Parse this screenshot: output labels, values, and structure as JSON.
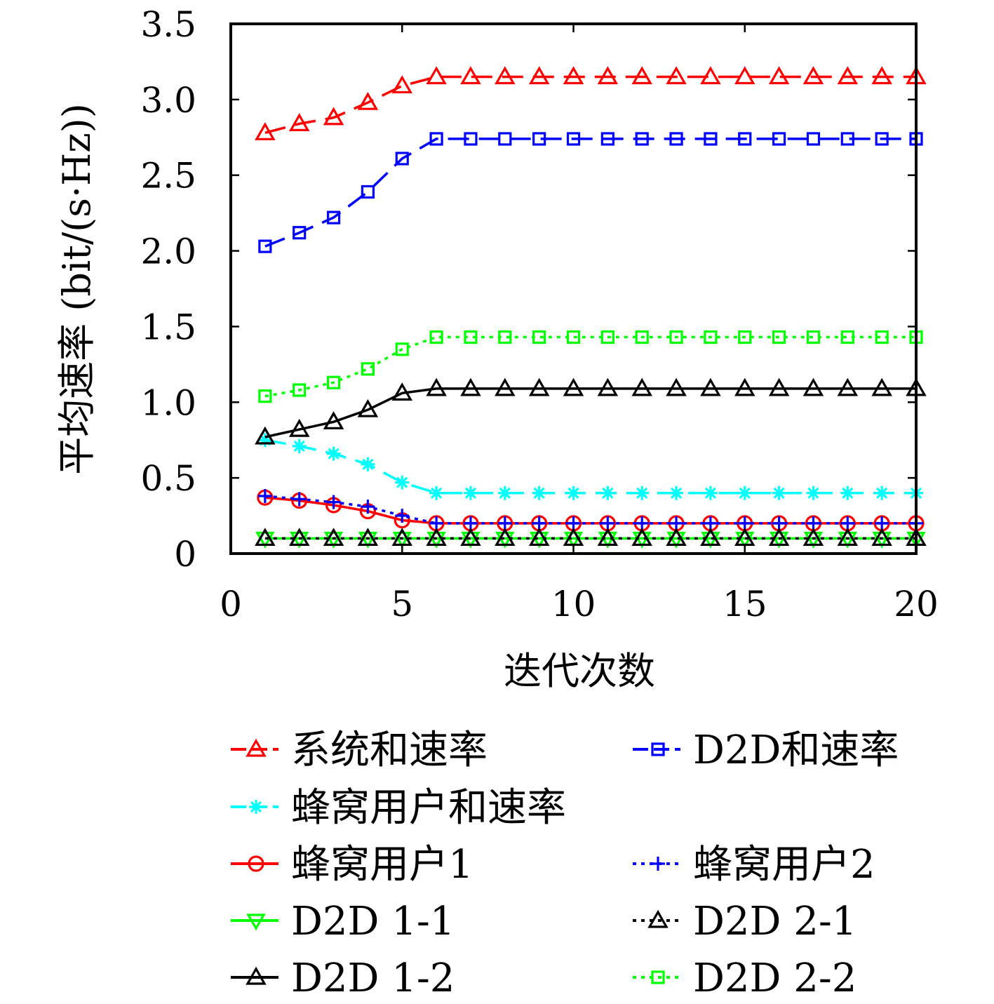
{
  "chart_data": {
    "type": "line",
    "xlabel": "迭代次数",
    "ylabel": "平均速率 (bit/(s·Hz))",
    "xlim": [
      0,
      20
    ],
    "ylim": [
      0,
      3.5
    ],
    "xticks": [
      0,
      5,
      10,
      15,
      20
    ],
    "xtick_labels": [
      "0",
      "5",
      "10",
      "15",
      "20"
    ],
    "yticks": [
      0,
      0.5,
      1.0,
      1.5,
      2.0,
      2.5,
      3.0,
      3.5
    ],
    "ytick_labels": [
      "0",
      "0.5",
      "1.0",
      "1.5",
      "2.0",
      "2.5",
      "3.0",
      "3.5"
    ],
    "grid": false,
    "legend_position": "below plot, two columns",
    "x": [
      1,
      2,
      3,
      4,
      5,
      6,
      7,
      8,
      9,
      10,
      11,
      12,
      13,
      14,
      15,
      16,
      17,
      18,
      19,
      20
    ],
    "series": [
      {
        "name": "系统和速率",
        "color": "#ff0000",
        "line_style": "dashed",
        "marker": "triangle-up",
        "values": [
          2.78,
          2.84,
          2.88,
          2.98,
          3.09,
          3.15,
          3.15,
          3.15,
          3.15,
          3.15,
          3.15,
          3.15,
          3.15,
          3.15,
          3.15,
          3.15,
          3.15,
          3.15,
          3.15,
          3.15
        ]
      },
      {
        "name": "D2D和速率",
        "color": "#0000ff",
        "line_style": "dashed",
        "marker": "square",
        "values": [
          2.03,
          2.12,
          2.22,
          2.39,
          2.61,
          2.74,
          2.74,
          2.74,
          2.74,
          2.74,
          2.74,
          2.74,
          2.74,
          2.74,
          2.74,
          2.74,
          2.74,
          2.74,
          2.74,
          2.74
        ]
      },
      {
        "name": "蜂窝用户和速率",
        "color": "#00ffff",
        "line_style": "dashed",
        "marker": "asterisk",
        "values": [
          0.75,
          0.71,
          0.66,
          0.59,
          0.47,
          0.4,
          0.4,
          0.4,
          0.4,
          0.4,
          0.4,
          0.4,
          0.4,
          0.4,
          0.4,
          0.4,
          0.4,
          0.4,
          0.4,
          0.4
        ]
      },
      {
        "name": "蜂窝用户1",
        "color": "#ff0000",
        "line_style": "solid",
        "marker": "circle",
        "values": [
          0.37,
          0.35,
          0.32,
          0.28,
          0.22,
          0.2,
          0.2,
          0.2,
          0.2,
          0.2,
          0.2,
          0.2,
          0.2,
          0.2,
          0.2,
          0.2,
          0.2,
          0.2,
          0.2,
          0.2
        ]
      },
      {
        "name": "蜂窝用户2",
        "color": "#0000ff",
        "line_style": "dotted",
        "marker": "plus",
        "values": [
          0.38,
          0.36,
          0.34,
          0.31,
          0.25,
          0.2,
          0.2,
          0.2,
          0.2,
          0.2,
          0.2,
          0.2,
          0.2,
          0.2,
          0.2,
          0.2,
          0.2,
          0.2,
          0.2,
          0.2
        ]
      },
      {
        "name": "D2D 1-1",
        "color": "#00ff00",
        "line_style": "solid",
        "marker": "triangle-down",
        "values": [
          0.1,
          0.1,
          0.1,
          0.1,
          0.1,
          0.1,
          0.1,
          0.1,
          0.1,
          0.1,
          0.1,
          0.1,
          0.1,
          0.1,
          0.1,
          0.1,
          0.1,
          0.1,
          0.1,
          0.1
        ]
      },
      {
        "name": "D2D 2-1",
        "color": "#000000",
        "line_style": "dotted",
        "marker": "triangle-up",
        "values": [
          0.1,
          0.1,
          0.1,
          0.1,
          0.1,
          0.1,
          0.1,
          0.1,
          0.1,
          0.1,
          0.1,
          0.1,
          0.1,
          0.1,
          0.1,
          0.1,
          0.1,
          0.1,
          0.1,
          0.1
        ]
      },
      {
        "name": "D2D 1-2",
        "color": "#000000",
        "line_style": "solid",
        "marker": "triangle-up",
        "values": [
          0.77,
          0.82,
          0.87,
          0.95,
          1.06,
          1.09,
          1.09,
          1.09,
          1.09,
          1.09,
          1.09,
          1.09,
          1.09,
          1.09,
          1.09,
          1.09,
          1.09,
          1.09,
          1.09,
          1.09
        ]
      },
      {
        "name": "D2D 2-2",
        "color": "#00ff00",
        "line_style": "dotted",
        "marker": "square",
        "values": [
          1.04,
          1.08,
          1.13,
          1.22,
          1.35,
          1.43,
          1.43,
          1.43,
          1.43,
          1.43,
          1.43,
          1.43,
          1.43,
          1.43,
          1.43,
          1.43,
          1.43,
          1.43,
          1.43,
          1.43
        ]
      }
    ],
    "legend_order": [
      "系统和速率",
      "D2D和速率",
      "蜂窝用户和速率",
      "蜂窝用户1",
      "蜂窝用户2",
      "D2D 1-1",
      "D2D 2-1",
      "D2D 1-2",
      "D2D 2-2"
    ]
  }
}
